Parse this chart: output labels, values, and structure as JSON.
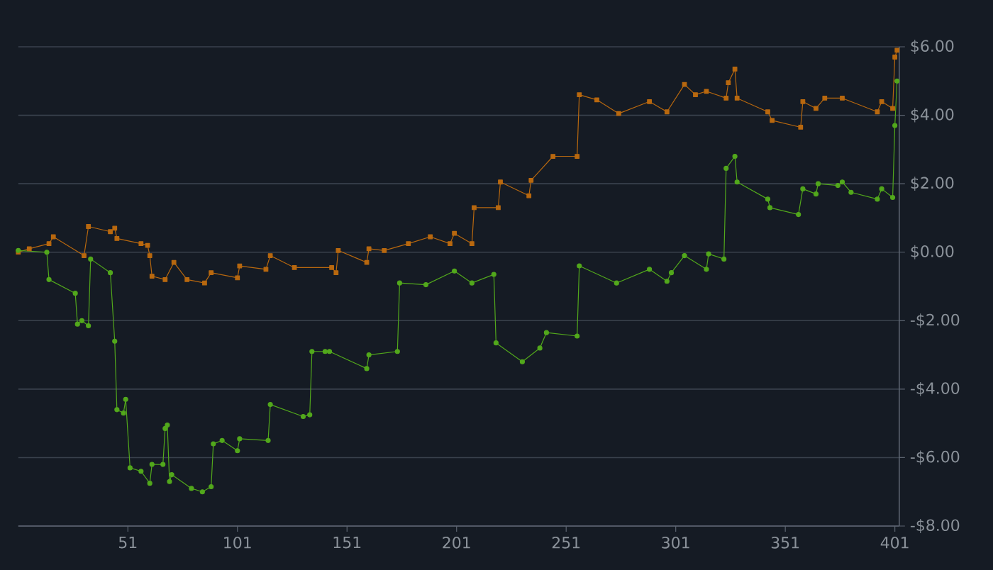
{
  "chart_data": {
    "type": "line",
    "series": [
      {
        "color": "#b8680f",
        "marker": "square",
        "x": [
          1,
          6,
          15,
          17,
          31,
          33,
          43,
          45,
          46,
          57,
          60,
          61,
          62,
          68,
          72,
          78,
          86,
          89,
          101,
          102,
          114,
          116,
          127,
          144,
          146,
          147,
          160,
          161,
          168,
          179,
          189,
          198,
          200,
          208,
          209,
          220,
          221,
          234,
          235,
          245,
          256,
          257,
          265,
          275,
          289,
          297,
          305,
          310,
          315,
          324,
          325,
          328,
          329,
          343,
          345,
          358,
          359,
          365,
          369,
          377,
          393,
          395,
          400,
          401,
          402
        ],
        "values": [
          0.0,
          0.1,
          0.25,
          0.45,
          -0.1,
          0.75,
          0.6,
          0.7,
          0.4,
          0.25,
          0.2,
          -0.1,
          -0.7,
          -0.8,
          -0.3,
          -0.8,
          -0.9,
          -0.6,
          -0.75,
          -0.4,
          -0.5,
          -0.1,
          -0.45,
          -0.45,
          -0.6,
          0.05,
          -0.3,
          0.1,
          0.05,
          0.25,
          0.45,
          0.25,
          0.55,
          0.25,
          1.3,
          1.3,
          2.05,
          1.65,
          2.1,
          2.8,
          2.8,
          4.6,
          4.45,
          4.05,
          4.4,
          4.1,
          4.9,
          4.6,
          4.7,
          4.5,
          4.95,
          5.35,
          4.5,
          4.1,
          3.85,
          3.65,
          4.4,
          4.2,
          4.5,
          4.5,
          4.1,
          4.4,
          4.2,
          5.7,
          5.9
        ]
      },
      {
        "color": "#52a81c",
        "marker": "circle",
        "x": [
          1,
          14,
          15,
          27,
          28,
          30,
          33,
          34,
          43,
          45,
          46,
          49,
          50,
          52,
          57,
          61,
          62,
          67,
          68,
          69,
          70,
          71,
          80,
          85,
          89,
          90,
          94,
          101,
          102,
          115,
          116,
          131,
          134,
          135,
          141,
          143,
          160,
          161,
          174,
          175,
          187,
          200,
          208,
          218,
          219,
          231,
          239,
          242,
          256,
          257,
          274,
          289,
          297,
          299,
          305,
          315,
          316,
          323,
          324,
          328,
          329,
          343,
          344,
          357,
          359,
          365,
          366,
          375,
          377,
          381,
          393,
          395,
          400,
          401,
          402
        ],
        "values": [
          0.05,
          0.0,
          -0.8,
          -1.2,
          -2.1,
          -2.0,
          -2.15,
          -0.2,
          -0.6,
          -2.6,
          -4.6,
          -4.7,
          -4.3,
          -6.3,
          -6.4,
          -6.75,
          -6.2,
          -6.2,
          -5.15,
          -5.05,
          -6.7,
          -6.5,
          -6.9,
          -7.0,
          -6.85,
          -5.6,
          -5.5,
          -5.8,
          -5.45,
          -5.5,
          -4.45,
          -4.8,
          -4.75,
          -2.9,
          -2.9,
          -2.9,
          -3.4,
          -3.0,
          -2.9,
          -0.9,
          -0.95,
          -0.55,
          -0.9,
          -0.65,
          -2.65,
          -3.2,
          -2.8,
          -2.35,
          -2.45,
          -0.4,
          -0.9,
          -0.5,
          -0.85,
          -0.6,
          -0.1,
          -0.5,
          -0.05,
          -0.2,
          2.45,
          2.8,
          2.05,
          1.55,
          1.3,
          1.1,
          1.85,
          1.7,
          2.0,
          1.95,
          2.05,
          1.75,
          1.55,
          1.85,
          1.6,
          3.7,
          5.0
        ]
      }
    ],
    "xlim": [
      1,
      403
    ],
    "ylim": [
      -8,
      6
    ],
    "xticks": [
      51,
      101,
      151,
      201,
      251,
      301,
      351,
      401
    ],
    "yticks": [
      {
        "value": -8,
        "label": "-$8.00"
      },
      {
        "value": -6,
        "label": "-$6.00"
      },
      {
        "value": -4,
        "label": "-$4.00"
      },
      {
        "value": -2,
        "label": "-$2.00"
      },
      {
        "value": 0,
        "label": "$0.00"
      },
      {
        "value": 2,
        "label": "$2.00"
      },
      {
        "value": 4,
        "label": "$4.00"
      },
      {
        "value": 6,
        "label": "$6.00"
      }
    ],
    "grid": "y",
    "line_style": "solid"
  }
}
